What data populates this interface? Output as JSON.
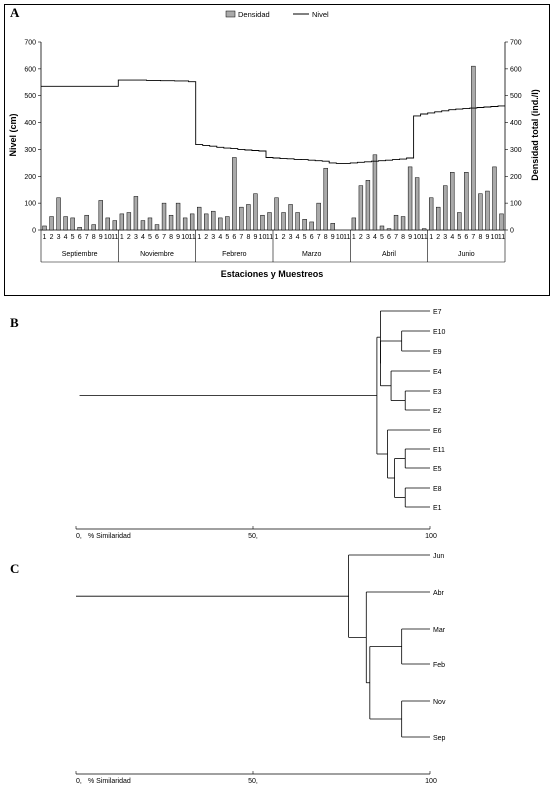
{
  "panel_labels": {
    "a": "A",
    "b": "B",
    "c": "C"
  },
  "chart_data": [
    {
      "type": "bar",
      "panel": "A",
      "legend": {
        "placement": "top-center",
        "bar_label": "Densidad",
        "line_label": "Nivel"
      },
      "ylabel_left": "Nivel (cm)",
      "ylabel_right": "Densidad total (ind./l)",
      "xlabel": "Estaciones y Muestreos",
      "ylim_left": [
        0,
        700
      ],
      "ylim_right": [
        0,
        700
      ],
      "yticks": [
        "0",
        "100",
        "200",
        "300",
        "400",
        "500",
        "600",
        "700"
      ],
      "station_labels": [
        "1",
        "2",
        "3",
        "4",
        "5",
        "6",
        "7",
        "8",
        "9",
        "10",
        "11"
      ],
      "months": [
        "Septiembre",
        "Noviembre",
        "Febrero",
        "Marzo",
        "Abril",
        "Junio"
      ],
      "grid": false,
      "series": [
        {
          "name": "Densidad",
          "kind": "bar",
          "axis": "right",
          "values": [
            [
              15,
              50,
              120,
              50,
              45,
              10,
              55,
              20,
              110,
              45,
              35
            ],
            [
              60,
              65,
              125,
              35,
              45,
              20,
              100,
              55,
              100,
              45,
              60
            ],
            [
              85,
              60,
              70,
              45,
              50,
              270,
              85,
              95,
              135,
              55,
              65
            ],
            [
              120,
              65,
              95,
              65,
              40,
              30,
              100,
              230,
              25,
              0,
              0
            ],
            [
              45,
              165,
              185,
              280,
              15,
              5,
              55,
              50,
              235,
              195,
              5
            ],
            [
              120,
              85,
              165,
              215,
              65,
              215,
              610,
              135,
              145,
              235,
              60
            ]
          ]
        },
        {
          "name": "Nivel",
          "kind": "line",
          "axis": "left",
          "values": [
            [
              535,
              535,
              535,
              535,
              535,
              535,
              535,
              535,
              535,
              535,
              535
            ],
            [
              558,
              558,
              558,
              558,
              557,
              557,
              556,
              556,
              555,
              555,
              552
            ],
            [
              318,
              315,
              312,
              308,
              305,
              303,
              300,
              298,
              296,
              294,
              270
            ],
            [
              268,
              266,
              265,
              263,
              262,
              260,
              258,
              256,
              250,
              248,
              248
            ],
            [
              250,
              252,
              254,
              256,
              258,
              260,
              262,
              264,
              268,
              425,
              432
            ],
            [
              436,
              440,
              444,
              448,
              450,
              452,
              454,
              456,
              458,
              460,
              462
            ]
          ]
        }
      ]
    },
    {
      "type": "dendrogram",
      "panel": "B",
      "axis_label": "% Similaridad",
      "xlim": [
        0,
        100
      ],
      "ticks": [
        0,
        50,
        100
      ],
      "tick_labels": [
        "0,",
        "50,",
        "100"
      ],
      "leaves": [
        "E7",
        "E10",
        "E9",
        "E4",
        "E3",
        "E2",
        "E6",
        "E11",
        "E5",
        "E8",
        "E1"
      ],
      "merges": [
        {
          "x": 93,
          "a": "E3",
          "b": "E2"
        },
        {
          "x": 92,
          "a": "E10",
          "b": "E9"
        },
        {
          "x": 93,
          "a": "E11",
          "b": "E5"
        },
        {
          "x": 93,
          "a": "E8",
          "b": "E1"
        },
        {
          "x": 89,
          "a": "E4",
          "b": "E3+E2"
        },
        {
          "x": 90,
          "a": "E11+E5",
          "b": "E8+E1"
        },
        {
          "x": 86,
          "a": "E10+E9",
          "b": "E4+E3+E2"
        },
        {
          "x": 88,
          "a": "E6",
          "b": "E11+E5+E8+E1"
        },
        {
          "x": 86,
          "a": "E7",
          "b": "E10+E9+E4+E3+E2"
        },
        {
          "x": 85,
          "a": "group-1",
          "b": "group-2"
        },
        {
          "x": 1,
          "a": "all",
          "b": ""
        }
      ]
    },
    {
      "type": "dendrogram",
      "panel": "C",
      "axis_label": "% Similaridad",
      "xlim": [
        0,
        100
      ],
      "ticks": [
        0,
        50,
        100
      ],
      "tick_labels": [
        "0,",
        "50,",
        "100"
      ],
      "leaves": [
        "Jun",
        "Abr",
        "Mar",
        "Feb",
        "Nov",
        "Sep"
      ],
      "merges": [
        {
          "x": 92,
          "a": "Mar",
          "b": "Feb"
        },
        {
          "x": 92,
          "a": "Nov",
          "b": "Sep"
        },
        {
          "x": 83,
          "a": "Mar+Feb",
          "b": "Nov+Sep"
        },
        {
          "x": 82,
          "a": "Abr",
          "b": "Mar+Feb+Nov+Sep"
        },
        {
          "x": 77,
          "a": "Jun",
          "b": "rest"
        },
        {
          "x": 0,
          "a": "all",
          "b": ""
        }
      ]
    }
  ]
}
